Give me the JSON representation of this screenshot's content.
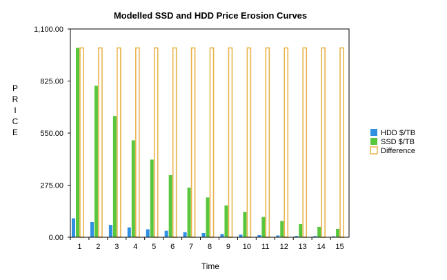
{
  "chart_data": {
    "type": "bar",
    "title": "Modelled SSD and HDD Price Erosion Curves",
    "xlabel": "Time",
    "ylabel": "PRICE",
    "categories": [
      "1",
      "2",
      "3",
      "4",
      "5",
      "6",
      "7",
      "8",
      "9",
      "10",
      "11",
      "12",
      "13",
      "14",
      "15"
    ],
    "ylim": [
      0,
      1100
    ],
    "yticks": [
      "0.00",
      "275.00",
      "550.00",
      "825.00",
      "1,100.00"
    ],
    "ytick_values": [
      0,
      275,
      550,
      825,
      1100
    ],
    "series": [
      {
        "name": "HDD $/TB",
        "color": "#2f8fe0",
        "style": "filled",
        "values": [
          100,
          80,
          65,
          52,
          42,
          34,
          27,
          22,
          17,
          14,
          11,
          9,
          7,
          6,
          5
        ]
      },
      {
        "name": "SSD $/TB",
        "color": "#58c73e",
        "style": "filled",
        "values": [
          1000,
          800,
          640,
          512,
          410,
          328,
          262,
          210,
          168,
          134,
          107,
          86,
          69,
          55,
          44
        ]
      },
      {
        "name": "Difference",
        "color": "#e8b44a",
        "style": "outline",
        "values": [
          1000,
          1000,
          1000,
          1000,
          1000,
          1000,
          1000,
          1000,
          1000,
          1000,
          1000,
          1000,
          1000,
          1000,
          1000
        ]
      }
    ],
    "legend_position": "right",
    "grid": false
  }
}
